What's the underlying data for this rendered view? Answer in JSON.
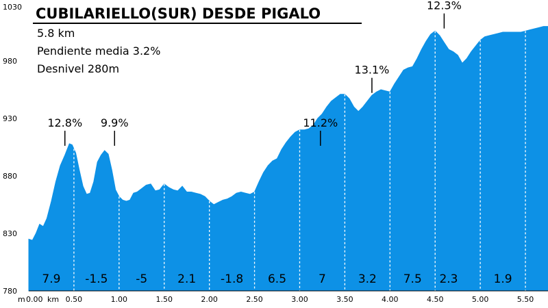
{
  "chart_data": {
    "type": "area",
    "title": "CUBILARIELLO(SUR) DESDE PIGALO",
    "info_lines": [
      "5.8 km",
      "Pendiente media 3.2%",
      "Desnivel 280m"
    ],
    "axis_prefix": "m",
    "x_unit": "km",
    "xlim": [
      0,
      5.75
    ],
    "ylim": [
      780,
      1030
    ],
    "grid": false,
    "fill_color": "#0d91e6",
    "y_ticks": [
      {
        "value": 780,
        "label": "780"
      },
      {
        "value": 830,
        "label": "830"
      },
      {
        "value": 880,
        "label": "880"
      },
      {
        "value": 930,
        "label": "930"
      },
      {
        "value": 980,
        "label": "980"
      },
      {
        "value": 1030,
        "label": "1030"
      }
    ],
    "x_ticks": [
      {
        "value": 0,
        "label": "0.00"
      },
      {
        "value": 0.5,
        "label": "0.50"
      },
      {
        "value": 1.0,
        "label": "1.00"
      },
      {
        "value": 1.5,
        "label": "1.50"
      },
      {
        "value": 2.0,
        "label": "2.00"
      },
      {
        "value": 2.5,
        "label": "2.50"
      },
      {
        "value": 3.0,
        "label": "3.00"
      },
      {
        "value": 3.5,
        "label": "3.50"
      },
      {
        "value": 4.0,
        "label": "4.00"
      },
      {
        "value": 4.5,
        "label": "4.50"
      },
      {
        "value": 5.0,
        "label": "5.00"
      },
      {
        "value": 5.5,
        "label": "5.50"
      }
    ],
    "segment_dividers": [
      0.5,
      1.0,
      1.5,
      2.0,
      2.5,
      3.0,
      3.5,
      4.0,
      4.5,
      5.0,
      5.5
    ],
    "segments": [
      {
        "x": 0.25,
        "label": "7.9"
      },
      {
        "x": 0.75,
        "label": "-1.5"
      },
      {
        "x": 1.25,
        "label": "-5"
      },
      {
        "x": 1.75,
        "label": "2.1"
      },
      {
        "x": 2.25,
        "label": "-1.8"
      },
      {
        "x": 2.75,
        "label": "6.5"
      },
      {
        "x": 3.25,
        "label": "7"
      },
      {
        "x": 3.75,
        "label": "3.2"
      },
      {
        "x": 4.25,
        "label": "7.5"
      },
      {
        "x": 4.65,
        "label": "2.3"
      },
      {
        "x": 5.25,
        "label": "1.9"
      }
    ],
    "peak_labels": [
      {
        "x": 0.4,
        "y": 905,
        "label": "12.8%"
      },
      {
        "x": 0.95,
        "y": 905,
        "label": "9.9%"
      },
      {
        "x": 3.23,
        "y": 905,
        "label": "11.2%"
      },
      {
        "x": 3.8,
        "y": 951,
        "label": "13.1%"
      },
      {
        "x": 4.6,
        "y": 1007,
        "label": "12.3%"
      }
    ],
    "profile": {
      "x": [
        0,
        0.04,
        0.08,
        0.12,
        0.16,
        0.2,
        0.25,
        0.3,
        0.35,
        0.4,
        0.45,
        0.48,
        0.52,
        0.56,
        0.6,
        0.64,
        0.68,
        0.72,
        0.76,
        0.8,
        0.84,
        0.88,
        0.92,
        0.96,
        1.0,
        1.04,
        1.08,
        1.12,
        1.16,
        1.2,
        1.25,
        1.3,
        1.35,
        1.4,
        1.45,
        1.5,
        1.55,
        1.6,
        1.65,
        1.7,
        1.75,
        1.8,
        1.85,
        1.9,
        1.95,
        2.0,
        2.05,
        2.1,
        2.15,
        2.2,
        2.25,
        2.3,
        2.35,
        2.4,
        2.45,
        2.5,
        2.55,
        2.6,
        2.65,
        2.7,
        2.75,
        2.8,
        2.85,
        2.9,
        2.95,
        3.0,
        3.05,
        3.1,
        3.15,
        3.2,
        3.25,
        3.3,
        3.35,
        3.4,
        3.45,
        3.5,
        3.55,
        3.6,
        3.65,
        3.7,
        3.75,
        3.8,
        3.85,
        3.9,
        3.95,
        4.0,
        4.05,
        4.1,
        4.15,
        4.2,
        4.25,
        4.3,
        4.35,
        4.4,
        4.45,
        4.5,
        4.55,
        4.6,
        4.65,
        4.7,
        4.75,
        4.8,
        4.85,
        4.9,
        4.95,
        5.0,
        5.05,
        5.1,
        5.15,
        5.2,
        5.25,
        5.3,
        5.35,
        5.4,
        5.45,
        5.5,
        5.55,
        5.6,
        5.65,
        5.7,
        5.75
      ],
      "y": [
        825,
        824,
        830,
        838,
        836,
        843,
        858,
        875,
        889,
        898,
        908,
        907,
        900,
        885,
        871,
        864,
        865,
        875,
        892,
        898,
        902,
        899,
        885,
        868,
        862,
        859,
        858,
        859,
        865,
        866,
        869,
        872,
        873,
        867,
        868,
        873,
        870,
        868,
        867,
        871,
        866,
        866,
        865,
        864,
        862,
        858,
        855,
        857,
        859,
        860,
        862,
        865,
        866,
        865,
        864,
        866,
        875,
        883,
        889,
        893,
        895,
        903,
        909,
        914,
        918,
        920,
        920,
        921,
        924,
        930,
        934,
        940,
        945,
        948,
        951,
        951,
        947,
        940,
        936,
        940,
        945,
        950,
        953,
        955,
        954,
        953,
        960,
        966,
        972,
        974,
        975,
        982,
        990,
        997,
        1003,
        1006,
        1002,
        996,
        990,
        988,
        985,
        978,
        982,
        988,
        993,
        998,
        1001,
        1002,
        1003,
        1004,
        1005,
        1005,
        1005,
        1005,
        1005,
        1006,
        1007,
        1008,
        1009,
        1010,
        1010
      ]
    }
  }
}
